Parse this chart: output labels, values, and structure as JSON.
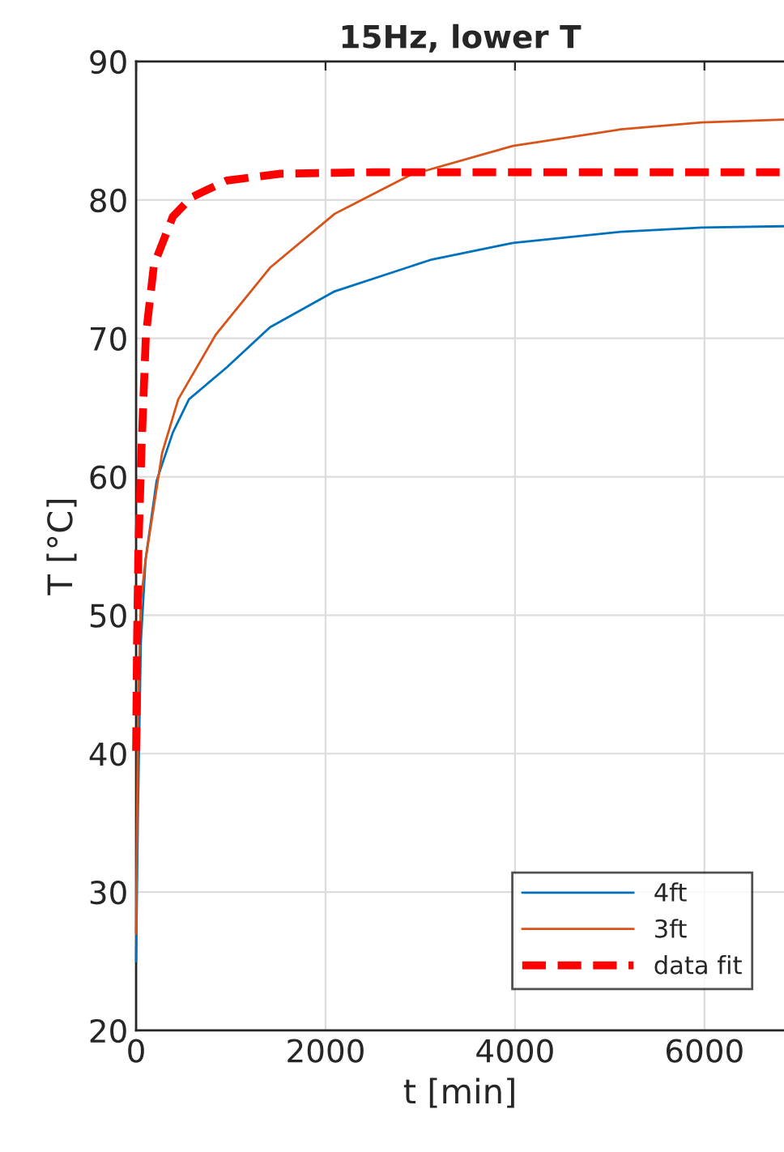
{
  "chart_data": {
    "type": "line",
    "title": "15Hz, lower T",
    "xlabel": "t [min]",
    "ylabel": "T [°C]",
    "xlim": [
      0,
      6840
    ],
    "ylim": [
      20,
      90
    ],
    "xticks": [
      0,
      2000,
      4000,
      6000
    ],
    "yticks": [
      20,
      30,
      40,
      50,
      60,
      70,
      80,
      90
    ],
    "grid": true,
    "legend": "bottom right",
    "series": [
      {
        "name": "4ft",
        "color": "#0072bd",
        "line_style": "solid",
        "x": [
          0,
          20,
          50,
          100,
          216,
          388,
          558,
          957,
          1413,
          2097,
          3123,
          3977,
          5117,
          5971,
          6838
        ],
        "values": [
          25,
          36,
          48,
          54,
          59.7,
          63.2,
          65.6,
          67.9,
          70.8,
          73.4,
          75.7,
          76.9,
          77.7,
          78.0,
          78.1
        ]
      },
      {
        "name": "3ft",
        "color": "#d95319",
        "line_style": "solid",
        "x": [
          0,
          20,
          50,
          100,
          274,
          445,
          844,
          1413,
          2097,
          2895,
          3977,
          5117,
          5971,
          6838
        ],
        "values": [
          27,
          43,
          51,
          54,
          61.7,
          65.6,
          70.3,
          75.1,
          79.0,
          81.8,
          83.9,
          85.1,
          85.6,
          85.8
        ]
      },
      {
        "name": "data fit",
        "color": "#ff0000",
        "line_style": "dashed",
        "x": [
          0,
          10,
          25,
          57,
          103,
          188,
          388,
          587,
          957,
          1527,
          2500,
          4000,
          5500,
          6838
        ],
        "values": [
          40.2,
          48,
          55,
          62,
          70.2,
          75.3,
          78.8,
          80.2,
          81.4,
          81.9,
          82.0,
          82.0,
          82.0,
          82.0
        ]
      }
    ]
  }
}
